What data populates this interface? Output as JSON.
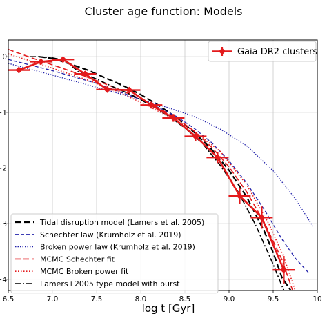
{
  "chart_data": {
    "type": "line",
    "title": "Cluster age function: Models",
    "xlabel": "log t [Gyr]",
    "ylabel": "",
    "xlim": [
      6.5,
      10.0
    ],
    "ylim": [
      -4.2,
      0.3
    ],
    "xticks": [
      "6.5",
      "7.0",
      "7.5",
      "8.0",
      "8.5",
      "9.0",
      "9.5",
      "10"
    ],
    "yticks": [
      "0",
      "−1",
      "−2",
      "−3",
      "−4"
    ],
    "ytick_values": [
      0,
      -1,
      -2,
      -3,
      -4
    ],
    "xtick_values": [
      6.5,
      7.0,
      7.5,
      8.0,
      8.5,
      9.0,
      9.5,
      10.0
    ],
    "grid": true,
    "data_legend": {
      "label": "Gaia DR2 clusters",
      "placement": "top-right"
    },
    "model_legend_placement": "lower-left",
    "data": {
      "name": "Gaia DR2 clusters",
      "color": "#e31a1c",
      "x": [
        6.62,
        6.87,
        7.12,
        7.37,
        7.62,
        7.87,
        8.12,
        8.37,
        8.62,
        8.87,
        9.12,
        9.37,
        9.62
      ],
      "y": [
        -0.24,
        -0.09,
        -0.05,
        -0.31,
        -0.59,
        -0.6,
        -0.87,
        -1.1,
        -1.43,
        -1.81,
        -2.5,
        -2.89,
        -3.83
      ],
      "xerr": 0.125,
      "yerr": [
        0.05,
        0.04,
        0.04,
        0.05,
        0.05,
        0.05,
        0.06,
        0.07,
        0.08,
        0.1,
        0.15,
        0.2,
        0.25
      ]
    },
    "series": [
      {
        "name": "Tidal disruption model (Lamers et al. 2005)",
        "color": "#000000",
        "dash": "9,4",
        "width": 2.2,
        "x": [
          6.85,
          7.0,
          7.2,
          7.4,
          7.6,
          7.8,
          8.0,
          8.2,
          8.4,
          8.6,
          8.8,
          9.0,
          9.2,
          9.4,
          9.5,
          9.6,
          9.7
        ],
        "y": [
          0.0,
          -0.03,
          -0.13,
          -0.24,
          -0.38,
          -0.52,
          -0.68,
          -0.87,
          -1.09,
          -1.35,
          -1.66,
          -2.04,
          -2.52,
          -3.14,
          -3.52,
          -3.97,
          -4.2
        ]
      },
      {
        "name": "Schechter law (Krumholz et al. 2019)",
        "color": "#2222aa",
        "dash": "5,3",
        "width": 1.3,
        "x": [
          6.5,
          7.0,
          7.5,
          8.0,
          8.2,
          8.4,
          8.6,
          8.8,
          9.0,
          9.2,
          9.4,
          9.6,
          9.75,
          9.9
        ],
        "y": [
          -0.05,
          -0.25,
          -0.48,
          -0.77,
          -0.91,
          -1.07,
          -1.28,
          -1.54,
          -1.87,
          -2.27,
          -2.75,
          -3.28,
          -3.62,
          -3.88
        ]
      },
      {
        "name": "Broken power law (Krumholz et al. 2019)",
        "color": "#2222aa",
        "dash": "1.5,2",
        "width": 1.3,
        "x": [
          6.5,
          7.0,
          7.5,
          8.0,
          8.3,
          8.6,
          8.9,
          9.2,
          9.5,
          9.75,
          9.95
        ],
        "y": [
          -0.12,
          -0.33,
          -0.55,
          -0.77,
          -0.91,
          -1.07,
          -1.3,
          -1.6,
          -2.05,
          -2.55,
          -3.05
        ]
      },
      {
        "name": "MCMC Schechter fit",
        "color": "#e31a1c",
        "dash": "8,4",
        "width": 1.6,
        "x": [
          6.5,
          6.8,
          7.1,
          7.4,
          7.7,
          8.0,
          8.2,
          8.4,
          8.6,
          8.8,
          9.0,
          9.2,
          9.4,
          9.6,
          9.72
        ],
        "y": [
          0.13,
          -0.04,
          -0.2,
          -0.37,
          -0.55,
          -0.76,
          -0.92,
          -1.1,
          -1.33,
          -1.62,
          -1.98,
          -2.43,
          -2.98,
          -3.65,
          -4.2
        ]
      },
      {
        "name": "MCMC Broken power fit",
        "color": "#e31a1c",
        "dash": "1.5,2.5",
        "width": 1.6,
        "x": [
          6.5,
          6.8,
          7.1,
          7.4,
          7.7,
          8.0,
          8.3,
          8.6,
          8.9,
          9.2,
          9.45,
          9.62,
          9.75
        ],
        "y": [
          0.05,
          -0.1,
          -0.26,
          -0.42,
          -0.6,
          -0.82,
          -1.06,
          -1.33,
          -1.7,
          -2.3,
          -3.0,
          -3.6,
          -4.2
        ]
      },
      {
        "name": "Lamers+2005 type model with burst",
        "color": "#000000",
        "dash": "8,3,2,3",
        "width": 1.6,
        "x": [
          6.75,
          6.85,
          7.0,
          7.15,
          7.3,
          7.5,
          7.7,
          7.9,
          8.1,
          8.3,
          8.5,
          8.7,
          8.9,
          9.1,
          9.3,
          9.5,
          9.62
        ],
        "y": [
          0.0,
          0.0,
          -0.02,
          -0.07,
          -0.28,
          -0.4,
          -0.55,
          -0.69,
          -0.86,
          -1.05,
          -1.28,
          -1.56,
          -1.95,
          -2.42,
          -3.02,
          -3.73,
          -4.2
        ]
      }
    ]
  }
}
